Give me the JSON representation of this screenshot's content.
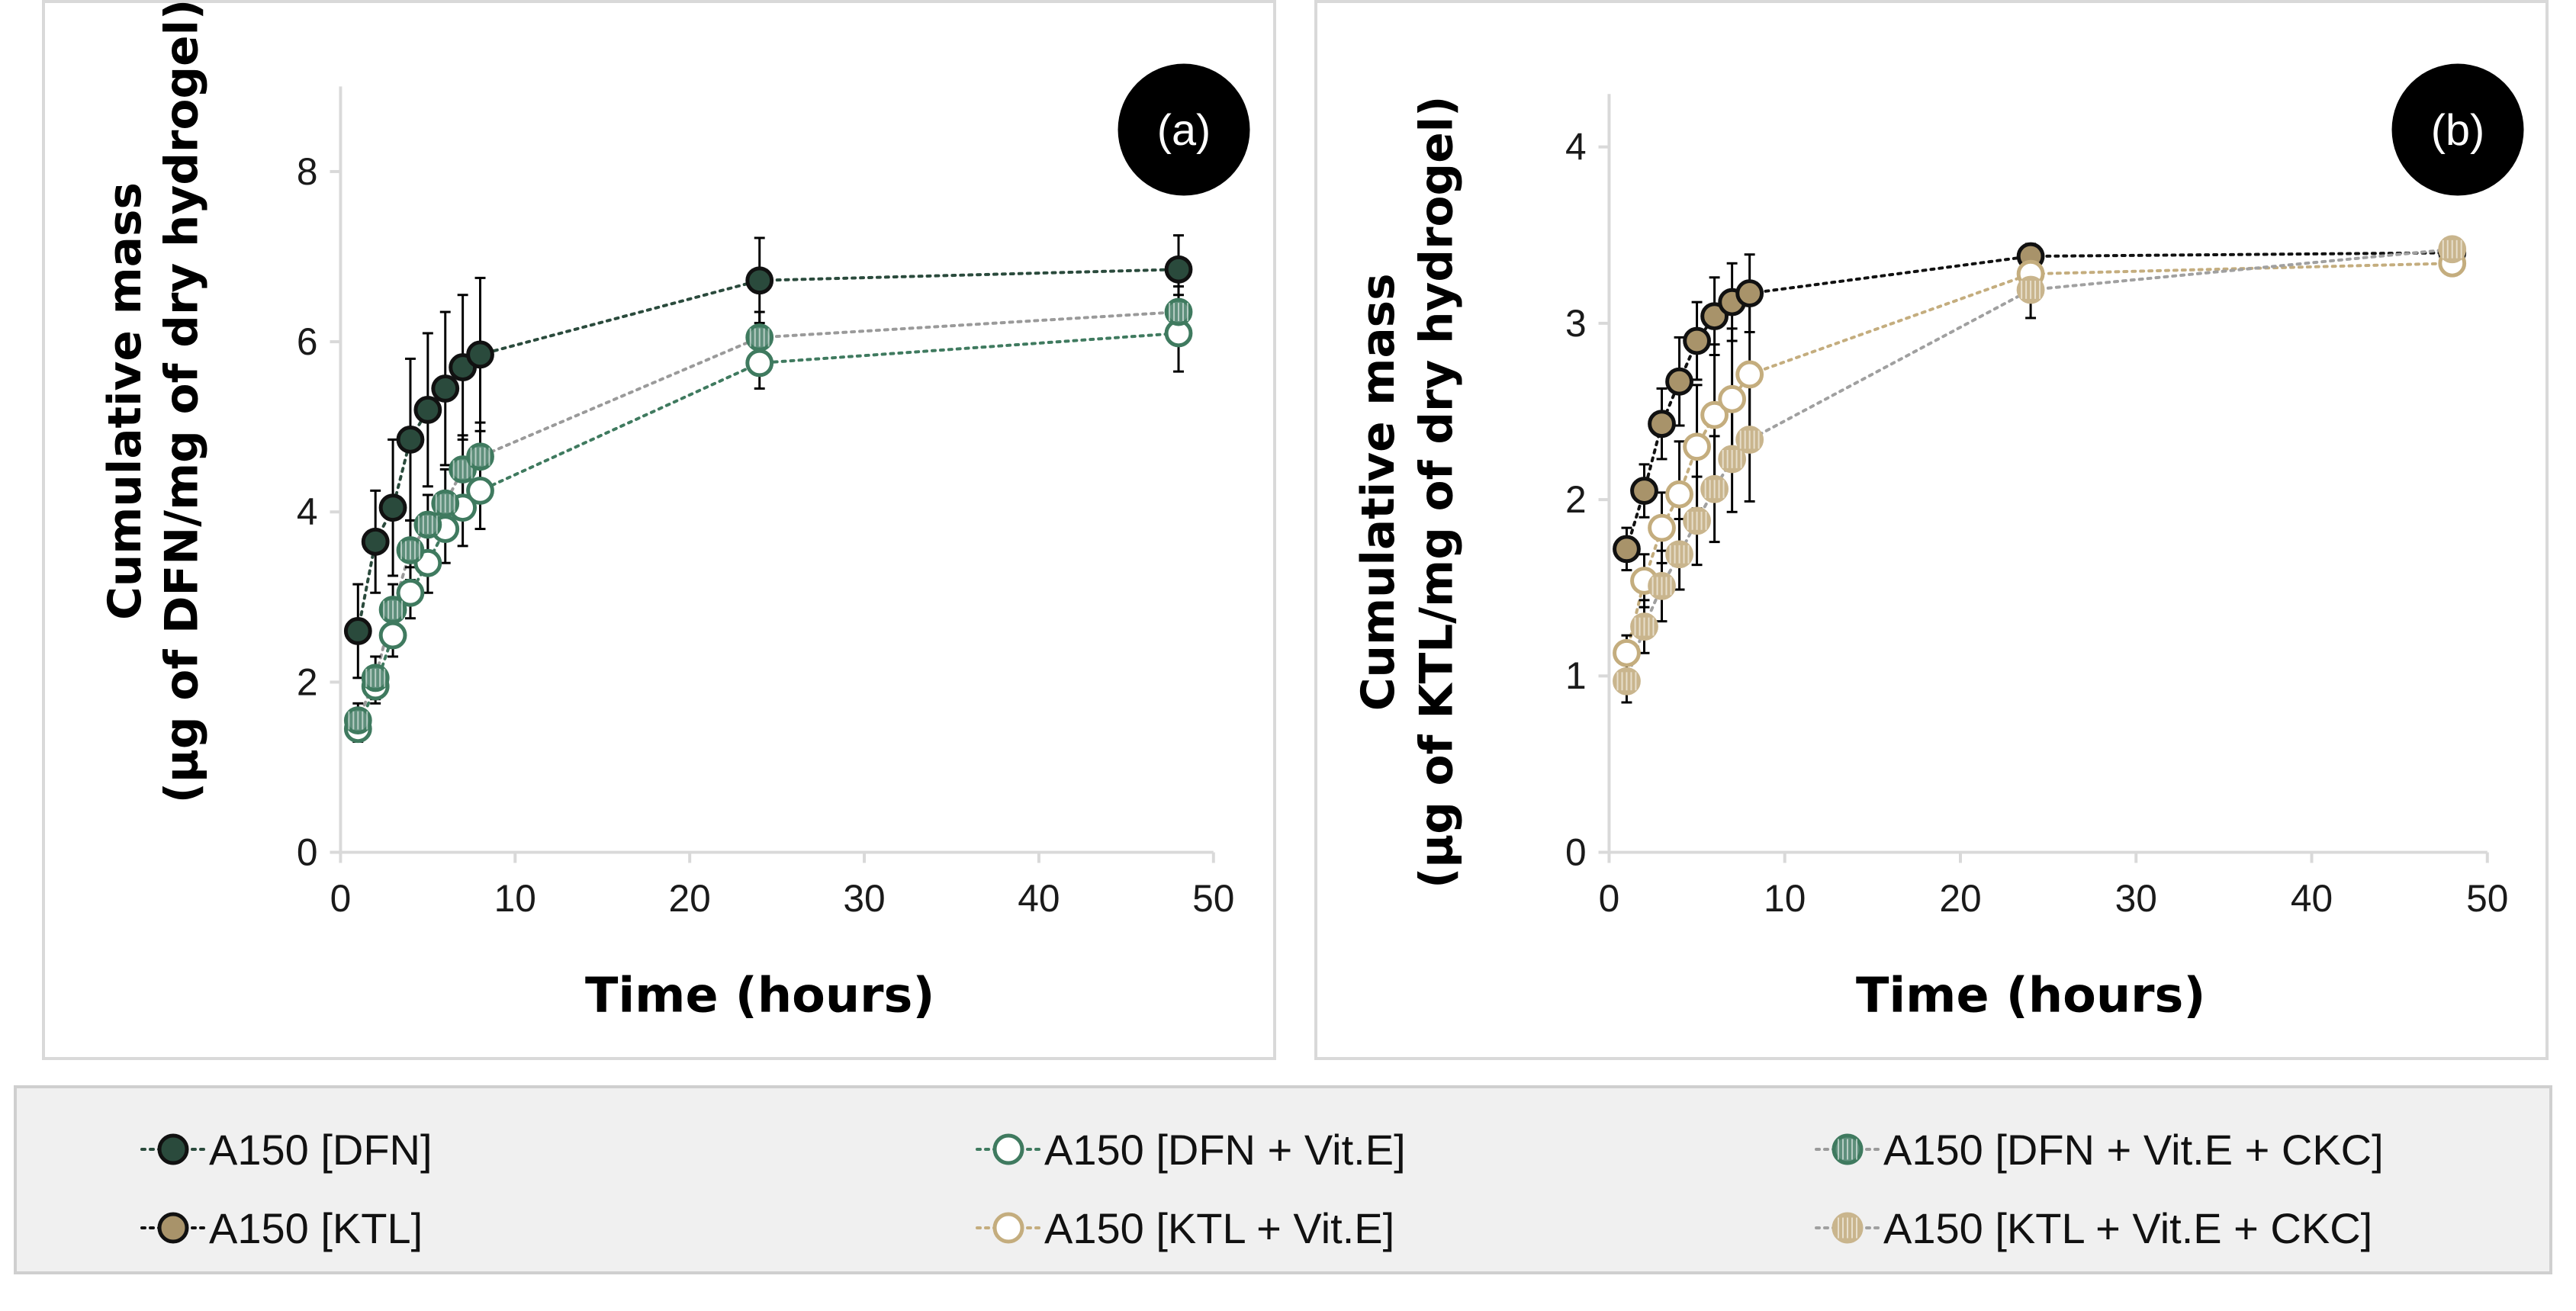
{
  "colors": {
    "dfn": "#2a4a3c",
    "dfn_vite": "#3f7a5f",
    "dfn_ckc_fill": "#5e8f7b",
    "ktl": "#a8936a",
    "ktl_vite": "#c4ad7e",
    "ktl_ckc_fill": "#c9b58d",
    "axis": "#d9d9d9",
    "badge": "#000000"
  },
  "legend": {
    "items": [
      {
        "label": "A150 [DFN]",
        "series": "dfn"
      },
      {
        "label": "A150 [DFN + Vit.E]",
        "series": "dfn_vite"
      },
      {
        "label": "A150 [DFN + Vit.E + CKC]",
        "series": "dfn_ckc"
      },
      {
        "label": "A150 [KTL]",
        "series": "ktl"
      },
      {
        "label": "A150 [KTL + Vit.E]",
        "series": "ktl_vite"
      },
      {
        "label": "A150 [KTL + Vit.E + CKC]",
        "series": "ktl_ckc"
      }
    ]
  },
  "chart_data": [
    {
      "type": "scatter",
      "panel_label": "(a)",
      "xlabel": "Time (hours)",
      "ylabel_line1": "Cumulative mass",
      "ylabel_line2": "(µg of DFN/mg of dry hydrogel)",
      "xlim": [
        0,
        50
      ],
      "ylim": [
        0,
        9
      ],
      "xticks": [
        0,
        10,
        20,
        30,
        40,
        50
      ],
      "yticks": [
        0,
        2,
        4,
        6,
        8
      ],
      "series": [
        {
          "name": "A150 [DFN]",
          "key": "dfn",
          "style": "filled",
          "x": [
            1,
            2,
            3,
            4,
            5,
            6,
            7,
            8,
            24,
            48
          ],
          "y": [
            2.6,
            3.65,
            4.05,
            4.85,
            5.2,
            5.45,
            5.7,
            5.85,
            6.72,
            6.85
          ],
          "err": [
            0.55,
            0.6,
            0.8,
            0.95,
            0.9,
            0.9,
            0.85,
            0.9,
            0.5,
            0.4
          ]
        },
        {
          "name": "A150 [DFN + Vit.E]",
          "key": "dfn_vite",
          "style": "open",
          "x": [
            1,
            2,
            3,
            4,
            5,
            6,
            7,
            8,
            24,
            48
          ],
          "y": [
            1.45,
            1.95,
            2.55,
            3.05,
            3.4,
            3.8,
            4.05,
            4.25,
            5.75,
            6.1
          ],
          "err": [
            0.15,
            0.2,
            0.25,
            0.3,
            0.35,
            0.4,
            0.45,
            0.45,
            0.3,
            0.45
          ]
        },
        {
          "name": "A150 [DFN + Vit.E + CKC]",
          "key": "dfn_ckc",
          "style": "hatched",
          "x": [
            1,
            2,
            3,
            4,
            5,
            6,
            7,
            8,
            24,
            48
          ],
          "y": [
            1.55,
            2.05,
            2.85,
            3.55,
            3.85,
            4.1,
            4.5,
            4.65,
            6.05,
            6.35
          ],
          "err": [
            0.2,
            0.25,
            0.3,
            0.35,
            0.35,
            0.4,
            0.4,
            0.4,
            0.3,
            0.3
          ]
        }
      ]
    },
    {
      "type": "scatter",
      "panel_label": "(b)",
      "xlabel": "Time (hours)",
      "ylabel_line1": "Cumulative mass",
      "ylabel_line2": "(µg of KTL/mg of dry hydrogel)",
      "xlim": [
        0,
        50
      ],
      "ylim": [
        0,
        4.3
      ],
      "xticks": [
        0,
        10,
        20,
        30,
        40,
        50
      ],
      "yticks": [
        0,
        1,
        2,
        3,
        4
      ],
      "series": [
        {
          "name": "A150 [KTL]",
          "key": "ktl",
          "style": "filled",
          "x": [
            1,
            2,
            3,
            4,
            5,
            6,
            7,
            8,
            24,
            48
          ],
          "y": [
            1.72,
            2.05,
            2.43,
            2.67,
            2.9,
            3.04,
            3.12,
            3.17,
            3.38,
            3.4
          ],
          "err": [
            0.12,
            0.15,
            0.2,
            0.25,
            0.22,
            0.22,
            0.22,
            0.22,
            0.07,
            0.07
          ]
        },
        {
          "name": "A150 [KTL + Vit.E]",
          "key": "ktl_vite",
          "style": "open",
          "x": [
            1,
            2,
            3,
            4,
            5,
            6,
            7,
            8,
            24,
            48
          ],
          "y": [
            1.13,
            1.54,
            1.84,
            2.03,
            2.3,
            2.48,
            2.57,
            2.71,
            3.28,
            3.34
          ],
          "err": [
            0.1,
            0.15,
            0.2,
            0.3,
            0.35,
            0.4,
            0.4,
            0.4,
            0.1,
            0.05
          ]
        },
        {
          "name": "A150 [KTL + Vit.E + CKC]",
          "key": "ktl_ckc",
          "style": "hatched",
          "x": [
            1,
            2,
            3,
            4,
            5,
            6,
            7,
            8,
            24,
            48
          ],
          "y": [
            0.97,
            1.28,
            1.51,
            1.69,
            1.88,
            2.06,
            2.23,
            2.34,
            3.19,
            3.42
          ],
          "err": [
            0.12,
            0.15,
            0.2,
            0.2,
            0.25,
            0.3,
            0.3,
            0.35,
            0.16,
            0.06
          ]
        }
      ]
    }
  ]
}
